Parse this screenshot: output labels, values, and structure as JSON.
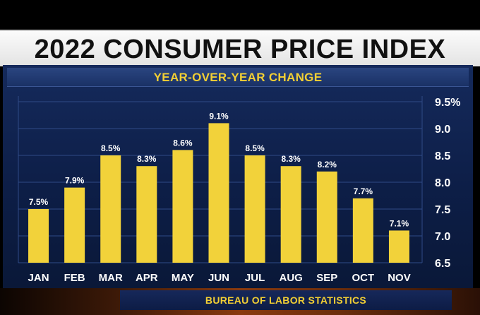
{
  "chart_data": {
    "type": "bar",
    "title": "2022 CONSUMER PRICE INDEX",
    "subtitle": "YEAR-OVER-YEAR CHANGE",
    "source": "BUREAU OF LABOR STATISTICS",
    "categories": [
      "JAN",
      "FEB",
      "MAR",
      "APR",
      "MAY",
      "JUN",
      "JUL",
      "AUG",
      "SEP",
      "OCT",
      "NOV"
    ],
    "values": [
      7.5,
      7.9,
      8.5,
      8.3,
      8.6,
      9.1,
      8.5,
      8.3,
      8.2,
      7.7,
      7.1
    ],
    "value_labels": [
      "7.5%",
      "7.9%",
      "8.5%",
      "8.3%",
      "8.6%",
      "9.1%",
      "8.5%",
      "8.3%",
      "8.2%",
      "7.7%",
      "7.1%"
    ],
    "ylim": [
      6.5,
      9.5
    ],
    "yticks": [
      6.5,
      7.0,
      7.5,
      8.0,
      8.5,
      9.0,
      9.5
    ],
    "ytick_labels": [
      "6.5",
      "7.0",
      "7.5",
      "8.0",
      "8.5",
      "9.0",
      "9.5%"
    ],
    "y_axis_side": "right",
    "grid": true,
    "xlabel": "",
    "ylabel": ""
  },
  "colors": {
    "bar": "#f2d23a",
    "accent": "#f2cf34",
    "panel": "#0f2250",
    "grid": "#2f4a86"
  }
}
